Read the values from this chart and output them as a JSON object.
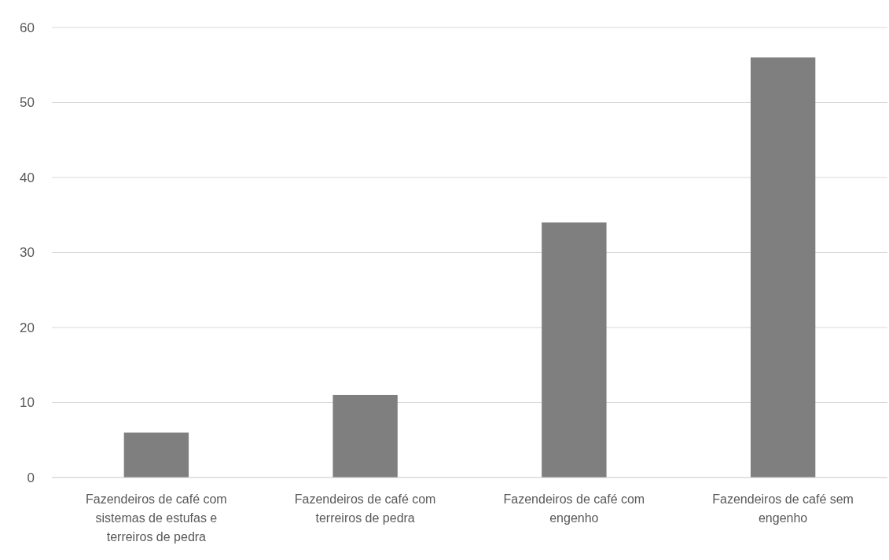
{
  "chart_data": {
    "type": "bar",
    "categories": [
      "Fazendeiros de café com sistemas de estufas e terreiros de pedra",
      "Fazendeiros de café com terreiros de pedra",
      "Fazendeiros de café com engenho",
      "Fazendeiros de café sem engenho"
    ],
    "values": [
      6,
      11,
      34,
      56
    ],
    "color": "#7f7f7f",
    "ylim": [
      0,
      60
    ],
    "yticks": [
      0,
      10,
      20,
      30,
      40,
      50,
      60
    ],
    "grid": "y"
  }
}
